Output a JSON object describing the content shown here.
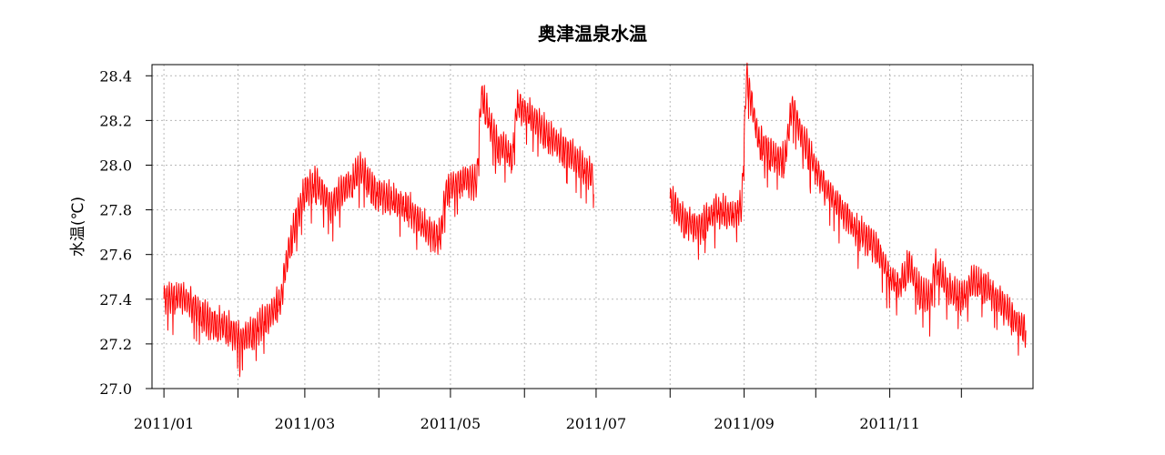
{
  "chart_data": {
    "type": "line",
    "title": "奥津温泉水温",
    "xlabel": "",
    "ylabel": "水温(℃)",
    "ylim": [
      27.0,
      28.45
    ],
    "xlim": [
      "2010-12-27",
      "2011-12-31"
    ],
    "y_ticks": [
      "27.0",
      "27.2",
      "27.4",
      "27.6",
      "27.8",
      "28.0",
      "28.2",
      "28.4"
    ],
    "x_ticks": [
      {
        "date": "2011-01-01",
        "label": "2011/01"
      },
      {
        "date": "2011-02-01",
        "label": ""
      },
      {
        "date": "2011-03-01",
        "label": "2011/03"
      },
      {
        "date": "2011-04-01",
        "label": ""
      },
      {
        "date": "2011-05-01",
        "label": "2011/05"
      },
      {
        "date": "2011-06-01",
        "label": ""
      },
      {
        "date": "2011-07-01",
        "label": "2011/07"
      },
      {
        "date": "2011-08-01",
        "label": ""
      },
      {
        "date": "2011-09-01",
        "label": "2011/09"
      },
      {
        "date": "2011-10-01",
        "label": ""
      },
      {
        "date": "2011-11-01",
        "label": "2011/11"
      },
      {
        "date": "2011-12-01",
        "label": ""
      }
    ],
    "grid": true,
    "series": [
      {
        "name": "",
        "color": "#ff0000",
        "segments": [
          [
            {
              "x": "2011-01-01",
              "y": 27.4
            },
            {
              "x": "2011-01-08",
              "y": 27.42
            },
            {
              "x": "2011-01-14",
              "y": 27.36
            },
            {
              "x": "2011-01-20",
              "y": 27.3
            },
            {
              "x": "2011-01-27",
              "y": 27.28
            },
            {
              "x": "2011-02-02",
              "y": 27.22
            },
            {
              "x": "2011-02-08",
              "y": 27.26
            },
            {
              "x": "2011-02-14",
              "y": 27.32
            },
            {
              "x": "2011-02-19",
              "y": 27.4
            },
            {
              "x": "2011-02-21",
              "y": 27.55
            },
            {
              "x": "2011-02-24",
              "y": 27.7
            },
            {
              "x": "2011-03-01",
              "y": 27.88
            },
            {
              "x": "2011-03-05",
              "y": 27.92
            },
            {
              "x": "2011-03-12",
              "y": 27.82
            },
            {
              "x": "2011-03-20",
              "y": 27.92
            },
            {
              "x": "2011-03-24",
              "y": 27.98
            },
            {
              "x": "2011-03-31",
              "y": 27.88
            },
            {
              "x": "2011-04-07",
              "y": 27.84
            },
            {
              "x": "2011-04-14",
              "y": 27.8
            },
            {
              "x": "2011-04-22",
              "y": 27.7
            },
            {
              "x": "2011-04-27",
              "y": 27.68
            },
            {
              "x": "2011-04-29",
              "y": 27.88
            },
            {
              "x": "2011-05-06",
              "y": 27.94
            },
            {
              "x": "2011-05-12",
              "y": 27.92
            },
            {
              "x": "2011-05-14",
              "y": 28.32
            },
            {
              "x": "2011-05-20",
              "y": 28.1
            },
            {
              "x": "2011-05-27",
              "y": 28.04
            },
            {
              "x": "2011-05-29",
              "y": 28.28
            },
            {
              "x": "2011-06-05",
              "y": 28.2
            },
            {
              "x": "2011-06-12",
              "y": 28.12
            },
            {
              "x": "2011-06-19",
              "y": 28.06
            },
            {
              "x": "2011-06-26",
              "y": 27.98
            },
            {
              "x": "2011-06-30",
              "y": 27.95
            }
          ],
          [
            {
              "x": "2011-08-01",
              "y": 27.85
            },
            {
              "x": "2011-08-06",
              "y": 27.76
            },
            {
              "x": "2011-08-13",
              "y": 27.72
            },
            {
              "x": "2011-08-20",
              "y": 27.8
            },
            {
              "x": "2011-08-27",
              "y": 27.78
            },
            {
              "x": "2011-08-31",
              "y": 27.82
            },
            {
              "x": "2011-09-02",
              "y": 28.4
            },
            {
              "x": "2011-09-07",
              "y": 28.12
            },
            {
              "x": "2011-09-13",
              "y": 28.04
            },
            {
              "x": "2011-09-18",
              "y": 28.02
            },
            {
              "x": "2011-09-21",
              "y": 28.26
            },
            {
              "x": "2011-09-28",
              "y": 28.06
            },
            {
              "x": "2011-10-05",
              "y": 27.9
            },
            {
              "x": "2011-10-12",
              "y": 27.8
            },
            {
              "x": "2011-10-19",
              "y": 27.7
            },
            {
              "x": "2011-10-26",
              "y": 27.64
            },
            {
              "x": "2011-11-01",
              "y": 27.5
            },
            {
              "x": "2011-11-05",
              "y": 27.46
            },
            {
              "x": "2011-11-09",
              "y": 27.55
            },
            {
              "x": "2011-11-14",
              "y": 27.42
            },
            {
              "x": "2011-11-18",
              "y": 27.4
            },
            {
              "x": "2011-11-20",
              "y": 27.55
            },
            {
              "x": "2011-11-25",
              "y": 27.45
            },
            {
              "x": "2011-12-01",
              "y": 27.4
            },
            {
              "x": "2011-12-06",
              "y": 27.48
            },
            {
              "x": "2011-12-12",
              "y": 27.45
            },
            {
              "x": "2011-12-18",
              "y": 27.38
            },
            {
              "x": "2011-12-22",
              "y": 27.32
            },
            {
              "x": "2011-12-28",
              "y": 27.26
            }
          ]
        ]
      }
    ]
  }
}
